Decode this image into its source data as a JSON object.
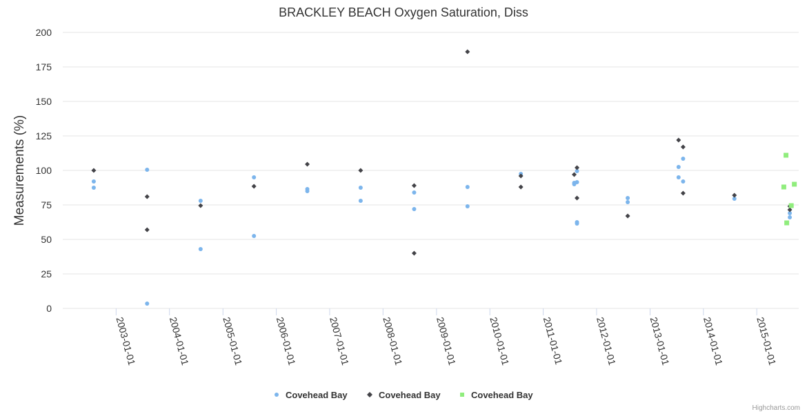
{
  "chart_data": {
    "type": "scatter",
    "title": "BRACKLEY BEACH Oxygen Saturation, Diss",
    "xlabel": "",
    "ylabel": "Measurements (%)",
    "ylim": [
      0,
      200
    ],
    "yticks": [
      0,
      25,
      50,
      75,
      100,
      125,
      150,
      175,
      200
    ],
    "xlim": [
      "2002-01-01",
      "2015-10-15"
    ],
    "xticks": [
      "2003-01-01",
      "2004-01-01",
      "2005-01-01",
      "2006-01-01",
      "2007-01-01",
      "2008-01-01",
      "2009-01-01",
      "2010-01-01",
      "2011-01-01",
      "2012-01-01",
      "2013-01-01",
      "2014-01-01",
      "2015-01-01"
    ],
    "series": [
      {
        "name": "Covehead Bay",
        "marker": "circle",
        "color": "#7cb5ec",
        "points": [
          {
            "x": "2002-08-01",
            "y": 92
          },
          {
            "x": "2002-08-01",
            "y": 87.5
          },
          {
            "x": "2003-08-01",
            "y": 100.5
          },
          {
            "x": "2003-08-01",
            "y": 3.5
          },
          {
            "x": "2004-08-01",
            "y": 78
          },
          {
            "x": "2004-08-01",
            "y": 43
          },
          {
            "x": "2005-08-01",
            "y": 95
          },
          {
            "x": "2005-08-01",
            "y": 52.5
          },
          {
            "x": "2006-08-01",
            "y": 86.5
          },
          {
            "x": "2006-08-01",
            "y": 85
          },
          {
            "x": "2007-08-01",
            "y": 87.5
          },
          {
            "x": "2007-08-01",
            "y": 78
          },
          {
            "x": "2008-08-01",
            "y": 84
          },
          {
            "x": "2008-08-01",
            "y": 72
          },
          {
            "x": "2009-08-01",
            "y": 88
          },
          {
            "x": "2009-08-01",
            "y": 74
          },
          {
            "x": "2010-08-01",
            "y": 97.5
          },
          {
            "x": "2011-08-01",
            "y": 91
          },
          {
            "x": "2011-08-01",
            "y": 90
          },
          {
            "x": "2011-08-20",
            "y": 99.5
          },
          {
            "x": "2011-08-20",
            "y": 91.5
          },
          {
            "x": "2011-08-20",
            "y": 62.5
          },
          {
            "x": "2011-08-20",
            "y": 61.5
          },
          {
            "x": "2012-08-01",
            "y": 80
          },
          {
            "x": "2012-08-01",
            "y": 77
          },
          {
            "x": "2013-07-15",
            "y": 102.5
          },
          {
            "x": "2013-07-15",
            "y": 95
          },
          {
            "x": "2013-08-15",
            "y": 108.5
          },
          {
            "x": "2013-08-15",
            "y": 92
          },
          {
            "x": "2014-08-01",
            "y": 79.5
          },
          {
            "x": "2015-08-15",
            "y": 69
          },
          {
            "x": "2015-08-15",
            "y": 66
          }
        ]
      },
      {
        "name": "Covehead Bay",
        "marker": "diamond",
        "color": "#434348",
        "points": [
          {
            "x": "2002-08-01",
            "y": 100
          },
          {
            "x": "2003-08-01",
            "y": 81
          },
          {
            "x": "2003-08-01",
            "y": 57
          },
          {
            "x": "2004-08-01",
            "y": 74.5
          },
          {
            "x": "2005-08-01",
            "y": 88.5
          },
          {
            "x": "2006-08-01",
            "y": 104.5
          },
          {
            "x": "2007-08-01",
            "y": 100
          },
          {
            "x": "2008-08-01",
            "y": 89
          },
          {
            "x": "2008-08-01",
            "y": 40
          },
          {
            "x": "2009-08-01",
            "y": 186
          },
          {
            "x": "2010-08-01",
            "y": 96
          },
          {
            "x": "2010-08-01",
            "y": 88
          },
          {
            "x": "2011-08-01",
            "y": 97
          },
          {
            "x": "2011-08-20",
            "y": 102
          },
          {
            "x": "2011-08-20",
            "y": 80
          },
          {
            "x": "2012-08-01",
            "y": 67
          },
          {
            "x": "2013-07-15",
            "y": 122
          },
          {
            "x": "2013-08-15",
            "y": 117
          },
          {
            "x": "2013-08-15",
            "y": 83.5
          },
          {
            "x": "2014-08-01",
            "y": 82
          },
          {
            "x": "2015-08-15",
            "y": 74
          },
          {
            "x": "2015-08-15",
            "y": 71.5
          }
        ]
      },
      {
        "name": "Covehead Bay",
        "marker": "square",
        "color": "#90ed7d",
        "points": [
          {
            "x": "2015-07-20",
            "y": 111
          },
          {
            "x": "2015-07-05",
            "y": 88
          },
          {
            "x": "2015-07-25",
            "y": 62
          },
          {
            "x": "2015-08-25",
            "y": 74.5
          },
          {
            "x": "2015-09-15",
            "y": 90
          }
        ]
      }
    ],
    "legend_position": "bottom-center",
    "credits": "Highcharts.com"
  }
}
